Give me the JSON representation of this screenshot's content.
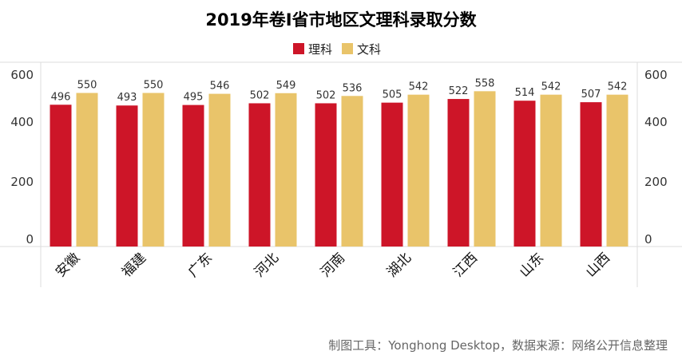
{
  "chart_data": {
    "type": "bar",
    "title": "2019年卷I省市地区文理科录取分数",
    "categories": [
      "安徽",
      "福建",
      "广东",
      "河北",
      "河南",
      "湖北",
      "江西",
      "山东",
      "山西"
    ],
    "series": [
      {
        "name": "理科",
        "color": "#cd1528",
        "values": [
          496,
          493,
          495,
          502,
          502,
          505,
          522,
          514,
          507
        ]
      },
      {
        "name": "文科",
        "color": "#e9c46a",
        "values": [
          550,
          550,
          546,
          549,
          536,
          542,
          558,
          542,
          542
        ]
      }
    ],
    "y_ticks": [
      0,
      200,
      400,
      600
    ],
    "ylim": [
      0,
      600
    ],
    "y_scale": "non-linear (ticks 0–600 unevenly spaced, values read from data labels)",
    "legend_position": "top-center",
    "grid": false,
    "axes": "y-axis ticks on both left and right"
  },
  "footer": {
    "text": "制图工具：Yonghong Desktop，数据来源：网络公开信息整理"
  }
}
